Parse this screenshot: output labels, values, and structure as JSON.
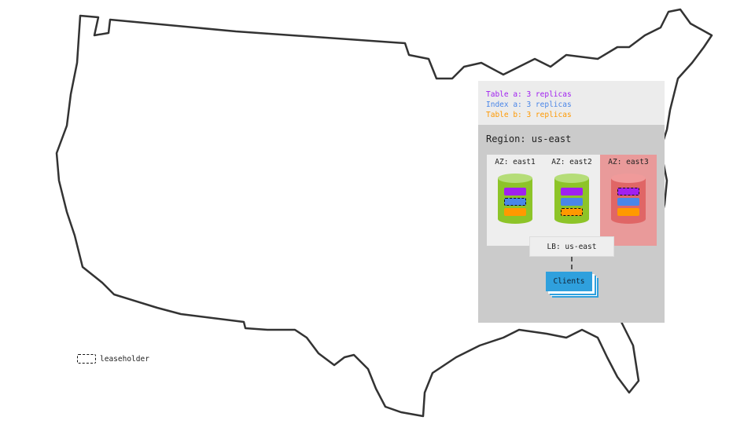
{
  "replicas": [
    {
      "label": "Table a: 3 replicas",
      "color": "#a020f0"
    },
    {
      "label": "Index a: 3 replicas",
      "color": "#4a86e8"
    },
    {
      "label": "Table b: 3 replicas",
      "color": "#ff9900"
    }
  ],
  "region": "Region: us-east",
  "zones": [
    {
      "label": "AZ: east1",
      "status": "up",
      "leaseholder": "Index a"
    },
    {
      "label": "AZ: east2",
      "status": "up",
      "leaseholder": "Table b"
    },
    {
      "label": "AZ: east3",
      "status": "down",
      "leaseholder": "Table a"
    }
  ],
  "lb": "LB: us-east",
  "clients": "Clients",
  "legend": {
    "leaseholder": "leaseholder"
  },
  "colors": {
    "healthy": "#8dc428",
    "failed": "#e06666"
  }
}
